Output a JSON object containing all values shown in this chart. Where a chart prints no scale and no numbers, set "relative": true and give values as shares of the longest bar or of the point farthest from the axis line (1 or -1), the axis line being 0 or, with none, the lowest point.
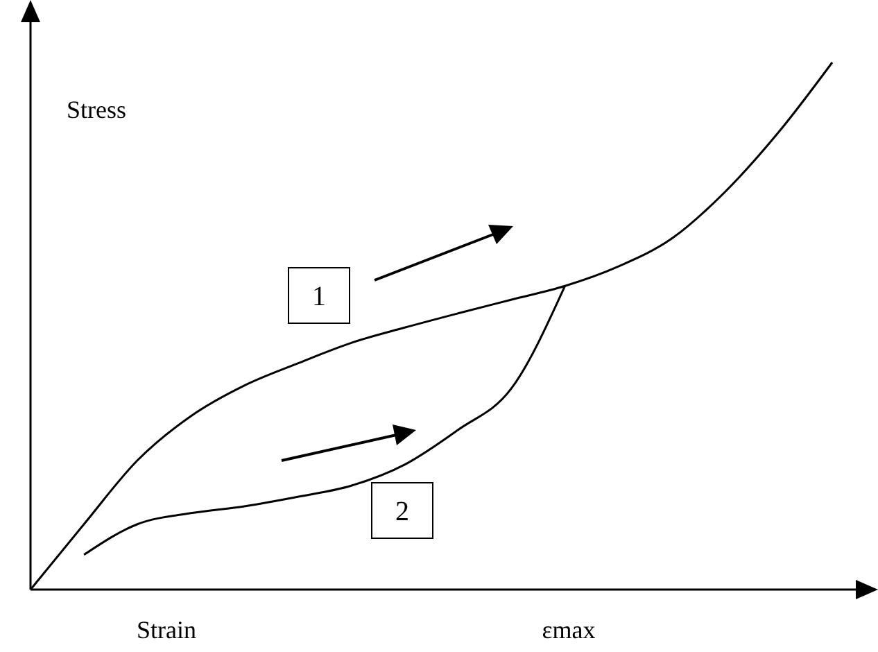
{
  "chart_data": {
    "type": "line",
    "relative": true,
    "xlabel": "Strain",
    "ylabel": "Stress",
    "categories": [
      null,
      null,
      null,
      null,
      null,
      null,
      null,
      null,
      null,
      null,
      null,
      null,
      null,
      null,
      null,
      null
    ],
    "series": [
      {
        "color": "#000000",
        "values": [
          0,
          0.124,
          0.245,
          0.329,
          0.387,
          0.429,
          0.468,
          0.497,
          0.524,
          0.55,
          0.576,
          0.613,
          0.666,
          0.755,
          0.868,
          1
        ]
      },
      {
        "color": "#000000",
        "values": [
          null,
          0.066,
          0.124,
          0.145,
          0.158,
          0.176,
          0.197,
          0.237,
          0.303,
          0.382,
          0.576,
          null,
          null,
          null,
          null,
          null
        ]
      }
    ],
    "annotations": [
      "1",
      "2",
      "εmax"
    ],
    "line_style": "solid"
  }
}
